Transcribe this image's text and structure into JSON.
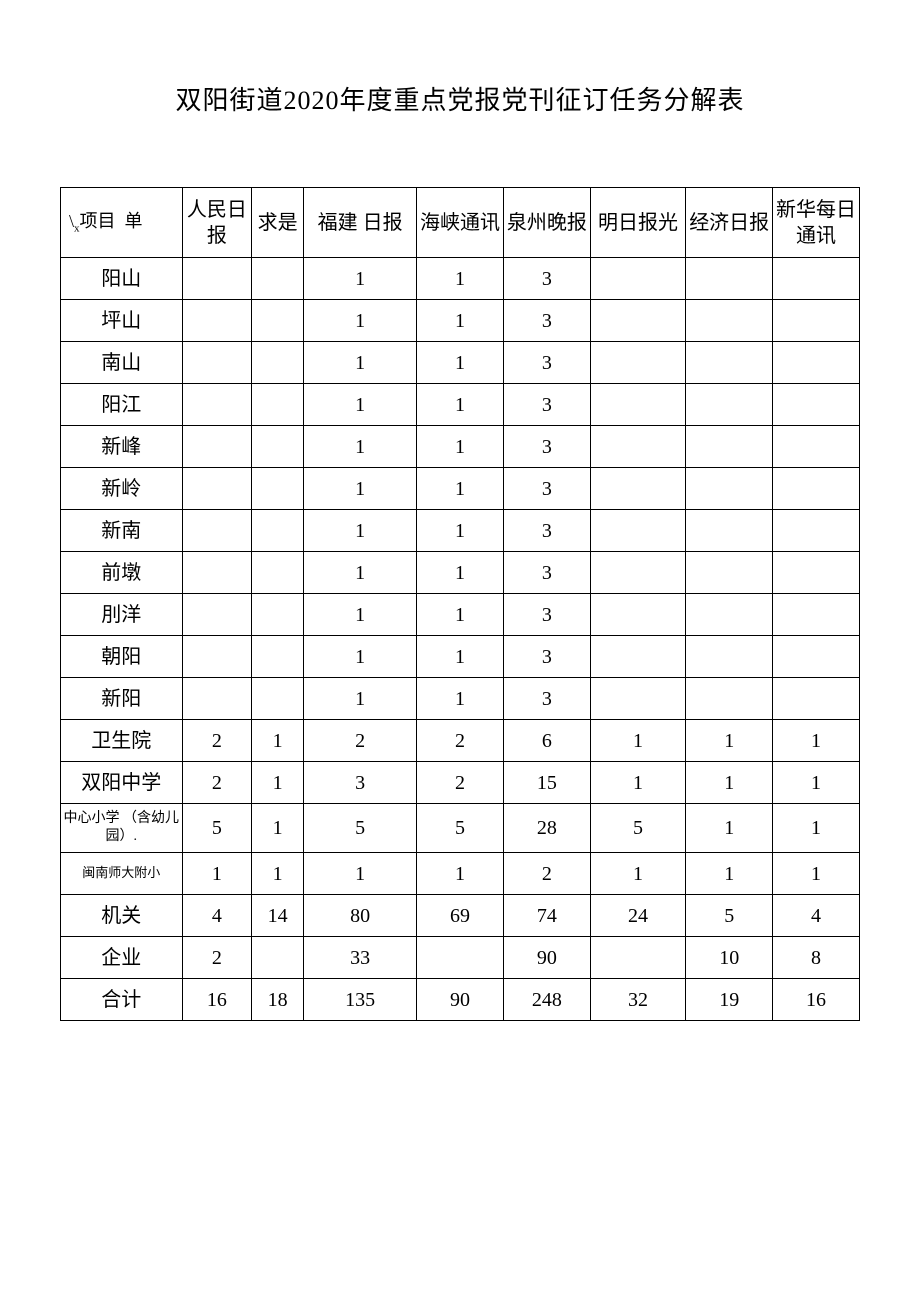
{
  "title": "双阳街道2020年度重点党报党刊征订任务分解表",
  "table": {
    "header_corner": "\\项目  单",
    "header_corner_sub": "x",
    "columns": [
      "人民日报",
      "求是",
      "福建  日报",
      "海峡通讯",
      "泉州晚报",
      "明日报光",
      "经济日报",
      "新华每日通讯"
    ],
    "col_widths": [
      "14%",
      "7.5%",
      "7.5%",
      "12%",
      "10%",
      "10%",
      "10%",
      "10%",
      "10%"
    ],
    "rows": [
      {
        "label": "阳山",
        "cells": [
          "",
          "",
          "1",
          "1",
          "3",
          "",
          "",
          ""
        ]
      },
      {
        "label": "坪山",
        "cells": [
          "",
          "",
          "1",
          "1",
          "3",
          "",
          "",
          ""
        ]
      },
      {
        "label": "南山",
        "cells": [
          "",
          "",
          "1",
          "1",
          "3",
          "",
          "",
          ""
        ]
      },
      {
        "label": "阳江",
        "cells": [
          "",
          "",
          "1",
          "1",
          "3",
          "",
          "",
          ""
        ]
      },
      {
        "label": "新峰",
        "cells": [
          "",
          "",
          "1",
          "1",
          "3",
          "",
          "",
          ""
        ]
      },
      {
        "label": "新岭",
        "cells": [
          "",
          "",
          "1",
          "1",
          "3",
          "",
          "",
          ""
        ]
      },
      {
        "label": "新南",
        "cells": [
          "",
          "",
          "1",
          "1",
          "3",
          "",
          "",
          ""
        ]
      },
      {
        "label": "前墩",
        "cells": [
          "",
          "",
          "1",
          "1",
          "3",
          "",
          "",
          ""
        ]
      },
      {
        "label": "刖洋",
        "cells": [
          "",
          "",
          "1",
          "1",
          "3",
          "",
          "",
          ""
        ]
      },
      {
        "label": "朝阳",
        "cells": [
          "",
          "",
          "1",
          "1",
          "3",
          "",
          "",
          ""
        ]
      },
      {
        "label": "新阳",
        "cells": [
          "",
          "",
          "1",
          "1",
          "3",
          "",
          "",
          ""
        ]
      },
      {
        "label": "卫生院",
        "cells": [
          "2",
          "1",
          "2",
          "2",
          "6",
          "1",
          "1",
          "1"
        ]
      },
      {
        "label": "双阳中学",
        "cells": [
          "2",
          "1",
          "3",
          "2",
          "15",
          "1",
          "1",
          "1"
        ]
      },
      {
        "label": "中心小学 （含幼儿园）.",
        "cells": [
          "5",
          "1",
          "5",
          "5",
          "28",
          "5",
          "1",
          "1"
        ],
        "label_class": "small-text"
      },
      {
        "label": "闽南师大附小",
        "cells": [
          "1",
          "1",
          "1",
          "1",
          "2",
          "1",
          "1",
          "1"
        ],
        "label_class": "smaller-text"
      },
      {
        "label": "机关",
        "cells": [
          "4",
          "14",
          "80",
          "69",
          "74",
          "24",
          "5",
          "4"
        ]
      },
      {
        "label": "企业",
        "cells": [
          "2",
          "",
          "33",
          "",
          "90",
          "",
          "10",
          "8"
        ]
      },
      {
        "label": "合计",
        "cells": [
          "16",
          "18",
          "135",
          "90",
          "248",
          "32",
          "19",
          "16"
        ]
      }
    ]
  },
  "styling": {
    "background_color": "#ffffff",
    "border_color": "#000000",
    "text_color": "#000000",
    "title_fontsize": 26,
    "cell_fontsize": 20,
    "small_fontsize": 14,
    "font_family": "SimSun"
  }
}
